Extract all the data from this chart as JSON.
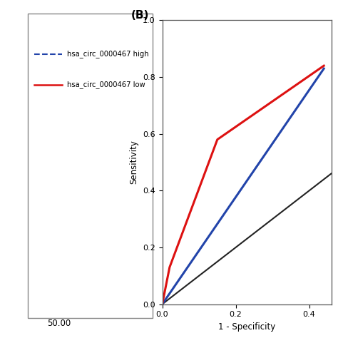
{
  "xlabel": "1 - Specificity",
  "ylabel": "Sensitivity",
  "xlim": [
    0.0,
    0.46
  ],
  "ylim": [
    0.0,
    1.0
  ],
  "yticks": [
    0.0,
    0.2,
    0.4,
    0.6,
    0.8,
    1.0
  ],
  "xticks": [
    0.0,
    0.2,
    0.4
  ],
  "blue_line": {
    "x": [
      0.0,
      0.44
    ],
    "y": [
      0.0,
      0.83
    ],
    "color": "#2244aa",
    "label": "hsa_circ_0000467 high",
    "linewidth": 2.2,
    "linestyle": "-"
  },
  "red_line": {
    "x": [
      0.0,
      0.02,
      0.15,
      0.44
    ],
    "y": [
      0.0,
      0.13,
      0.58,
      0.84
    ],
    "color": "#dd1111",
    "label": "hsa_circ_0000467 low",
    "linewidth": 2.2,
    "linestyle": "-"
  },
  "ref_line": {
    "x": [
      0.0,
      0.46
    ],
    "y": [
      0.0,
      0.46
    ],
    "color": "#222222",
    "linewidth": 1.5,
    "linestyle": "-"
  },
  "legend_blue_label": "hsa_circ_0000467 high",
  "legend_red_label": "hsa_circ_0000467 low",
  "panel_label": "(B)",
  "background_color": "#ffffff",
  "left_panel_box_label": "50.00"
}
